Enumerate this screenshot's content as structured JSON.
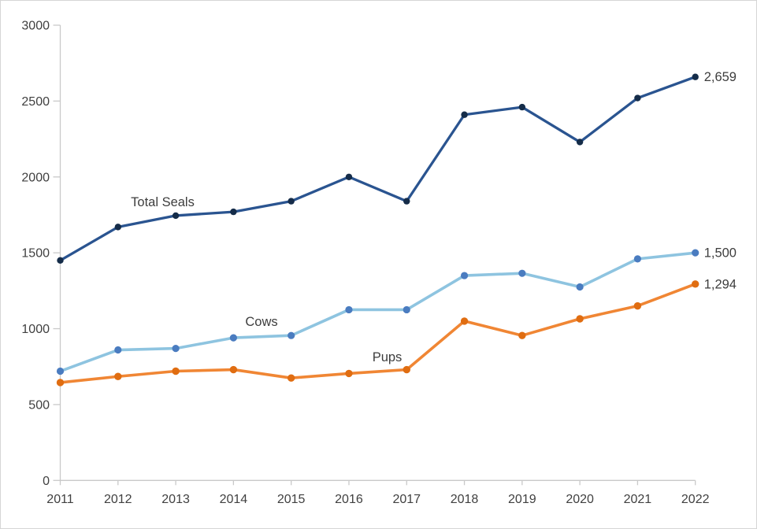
{
  "chart_data": {
    "type": "line",
    "x": [
      2011,
      2012,
      2013,
      2014,
      2015,
      2016,
      2017,
      2018,
      2019,
      2020,
      2021,
      2022
    ],
    "x_tick_labels": [
      "2011",
      "2012",
      "2013",
      "2014",
      "2015",
      "2016",
      "2017",
      "2018",
      "2019",
      "2020",
      "2021",
      "2022"
    ],
    "y_ticks": [
      0,
      500,
      1000,
      1500,
      2000,
      2500,
      3000
    ],
    "y_tick_labels": [
      "0",
      "500",
      "1000",
      "1500",
      "2000",
      "2500",
      "3000"
    ],
    "ylim": [
      0,
      3000
    ],
    "grid": false,
    "legend": "direct-labels-on-lines",
    "title": "",
    "xlabel": "",
    "ylabel": "",
    "series": [
      {
        "name": "Total Seals",
        "values": [
          1450,
          1670,
          1745,
          1770,
          1840,
          2000,
          1840,
          2410,
          2460,
          2230,
          2520,
          2659
        ],
        "end_label": "2,659",
        "line_color": "#2a5490",
        "marker_color": "#152c49"
      },
      {
        "name": "Cows",
        "values": [
          720,
          860,
          870,
          940,
          955,
          1125,
          1125,
          1350,
          1365,
          1275,
          1460,
          1500
        ],
        "end_label": "1,500",
        "line_color": "#8ec4e0",
        "marker_color": "#4a7cc0"
      },
      {
        "name": "Pups",
        "values": [
          645,
          685,
          720,
          730,
          675,
          705,
          730,
          1050,
          955,
          1065,
          1150,
          1294
        ],
        "end_label": "1,294",
        "line_color": "#f08634",
        "marker_color": "#e06d11"
      }
    ],
    "colors": {
      "axis": "#c9c9c9",
      "tick_text": "#404040",
      "label_text": "#3d3d3d"
    }
  }
}
